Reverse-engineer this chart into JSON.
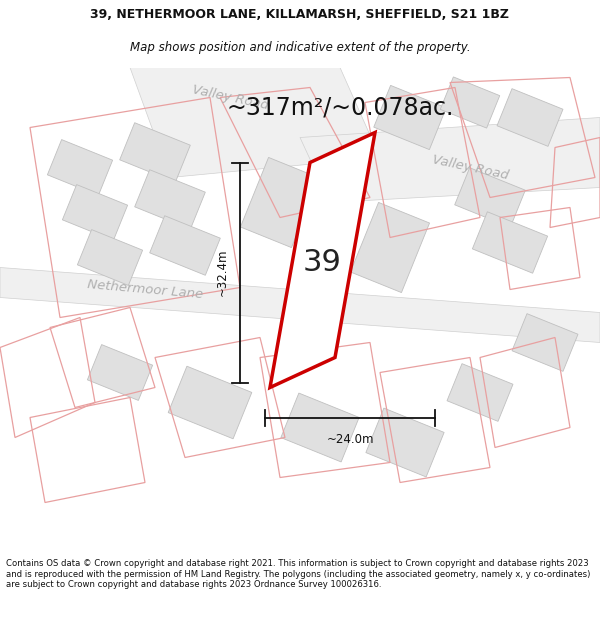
{
  "title_line1": "39, NETHERMOOR LANE, KILLAMARSH, SHEFFIELD, S21 1BZ",
  "title_line2": "Map shows position and indicative extent of the property.",
  "area_text": "~317m²/~0.078ac.",
  "dim_width": "~24.0m",
  "dim_height": "~32.4m",
  "plot_number": "39",
  "footer_text": "Contains OS data © Crown copyright and database right 2021. This information is subject to Crown copyright and database rights 2023 and is reproduced with the permission of HM Land Registry. The polygons (including the associated geometry, namely x, y co-ordinates) are subject to Crown copyright and database rights 2023 Ordnance Survey 100026316.",
  "bg_color": "#ffffff",
  "map_bg": "#ffffff",
  "building_fill": "#e0e0e0",
  "building_stroke": "#c0c0c0",
  "pink_stroke": "#e8a0a0",
  "pink_fill": "none",
  "red_stroke": "#cc0000",
  "dim_color": "#111111",
  "road_label_color": "#b0b0b0",
  "title_color": "#111111",
  "footer_color": "#111111",
  "title_fontsize": 9.0,
  "subtitle_fontsize": 8.5,
  "area_fontsize": 17,
  "plot_num_fontsize": 22,
  "dim_fontsize": 8.5,
  "road_fontsize": 9.5,
  "footer_fontsize": 6.1
}
